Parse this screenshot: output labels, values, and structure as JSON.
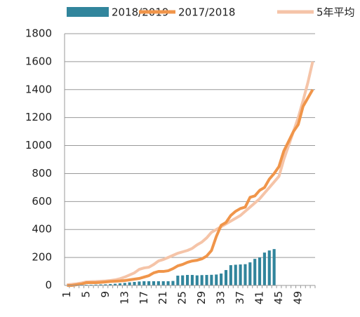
{
  "chart_data": {
    "type": "bar",
    "categories": [
      "1",
      null,
      null,
      null,
      "5",
      null,
      null,
      null,
      "9",
      null,
      null,
      null,
      "13",
      null,
      null,
      null,
      "17",
      null,
      null,
      null,
      "21",
      null,
      null,
      null,
      "25",
      null,
      null,
      null,
      "29",
      null,
      null,
      null,
      "33",
      null,
      null,
      null,
      "37",
      null,
      null,
      null,
      "41",
      null,
      null,
      null,
      "45",
      null,
      null,
      null,
      "49",
      null,
      null,
      null
    ],
    "series": [
      {
        "name": "2018/2019",
        "type": "bar",
        "color": "#31859c",
        "values": [
          0,
          2,
          3,
          4,
          5,
          5,
          6,
          7,
          8,
          10,
          12,
          15,
          18,
          22,
          25,
          28,
          30,
          30,
          30,
          30,
          30,
          30,
          32,
          70,
          72,
          75,
          75,
          72,
          74,
          75,
          76,
          78,
          85,
          110,
          145,
          148,
          150,
          152,
          165,
          190,
          200,
          235,
          250,
          260,
          null,
          null,
          null,
          null,
          null,
          null,
          null,
          null
        ]
      },
      {
        "name": "2017/2018",
        "type": "line",
        "color": "#f0954a",
        "values": [
          0,
          0,
          5,
          10,
          20,
          20,
          20,
          22,
          25,
          28,
          30,
          32,
          35,
          40,
          45,
          50,
          60,
          70,
          90,
          100,
          100,
          105,
          120,
          140,
          150,
          165,
          175,
          180,
          190,
          210,
          250,
          350,
          430,
          450,
          500,
          530,
          550,
          560,
          630,
          640,
          680,
          700,
          760,
          800,
          850,
          960,
          1030,
          1100,
          1150,
          1280,
          1340,
          1400
        ]
      },
      {
        "name": "5年平均",
        "type": "line",
        "color": "#f5c4a8",
        "values": [
          5,
          8,
          12,
          18,
          25,
          27,
          28,
          30,
          32,
          35,
          40,
          48,
          60,
          75,
          90,
          115,
          125,
          130,
          150,
          175,
          185,
          200,
          215,
          230,
          240,
          250,
          265,
          290,
          310,
          340,
          380,
          400,
          420,
          440,
          460,
          480,
          500,
          530,
          560,
          590,
          620,
          660,
          700,
          740,
          780,
          900,
          1000,
          1100,
          1200,
          1320,
          1450,
          1600
        ]
      }
    ],
    "ylim": [
      0,
      1800
    ],
    "yticks": [
      0,
      200,
      400,
      600,
      800,
      1000,
      1200,
      1400,
      1600,
      1800
    ],
    "grid": true
  }
}
